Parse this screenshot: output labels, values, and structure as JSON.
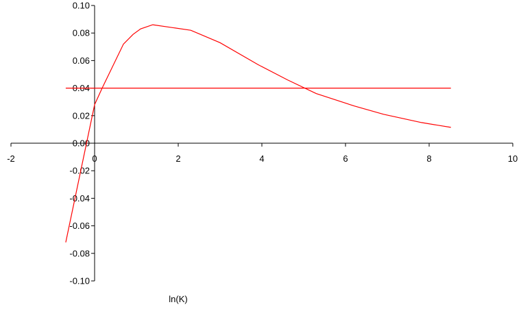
{
  "chart_data": {
    "type": "line",
    "title": "",
    "xlabel": "ln(K)",
    "ylabel": "",
    "xlim": [
      -2,
      10
    ],
    "ylim": [
      -0.1,
      0.1
    ],
    "grid": false,
    "legend": "none",
    "x_ticks": [
      "-2",
      "0",
      "2",
      "4",
      "6",
      "8",
      "10"
    ],
    "y_ticks": [
      "0.10",
      "0.08",
      "0.06",
      "0.04",
      "0.02",
      "0.00",
      "-0.02",
      "-0.04",
      "-0.06",
      "-0.08",
      "-0.10"
    ],
    "series": [
      {
        "color": "#ff0000",
        "x": [
          -0.69,
          0.0,
          0.18,
          0.69,
          0.92,
          1.1,
          1.39,
          2.3,
          3.0,
          3.91,
          4.61,
          5.3,
          6.21,
          6.91,
          7.82,
          8.52
        ],
        "y": [
          -0.072,
          0.028,
          0.04,
          0.072,
          0.079,
          0.083,
          0.086,
          0.082,
          0.073,
          0.057,
          0.046,
          0.036,
          0.027,
          0.021,
          0.015,
          0.0115
        ]
      },
      {
        "color": "#ff0000",
        "x": [
          -0.69,
          8.52
        ],
        "y": [
          0.04,
          0.04
        ]
      }
    ]
  }
}
